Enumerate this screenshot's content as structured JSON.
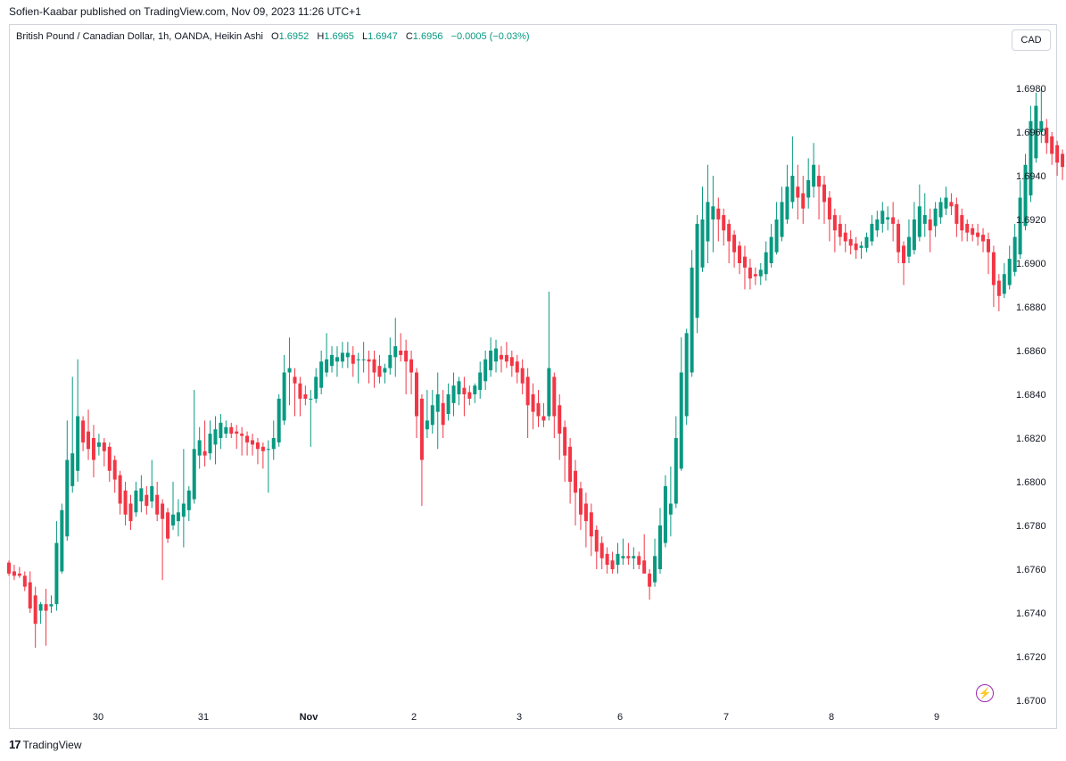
{
  "publish_line": "Sofien-Kaabar published on TradingView.com, Nov 09, 2023 11:26 UTC+1",
  "legend": {
    "symbol": "British Pound / Canadian Dollar, 1h, OANDA, Heikin Ashi",
    "o_label": "O",
    "o_value": "1.6952",
    "h_label": "H",
    "h_value": "1.6965",
    "l_label": "L",
    "l_value": "1.6947",
    "c_label": "C",
    "c_value": "1.6956",
    "change": "−0.0005 (−0.03%)"
  },
  "currency_button": "CAD",
  "logo_mark": "17",
  "logo_text": "TradingView",
  "bolt_icon": "lightning-icon",
  "colors": {
    "up": "#089981",
    "down": "#f23645",
    "axis_text": "#131722",
    "border": "#d1d4dc",
    "accent": "#9c27b0"
  },
  "chart_data": {
    "type": "candlestick",
    "ylim": [
      1.6695,
      1.7005
    ],
    "y_ticks": [
      "1.6700",
      "1.6720",
      "1.6740",
      "1.6760",
      "1.6780",
      "1.6800",
      "1.6820",
      "1.6840",
      "1.6860",
      "1.6880",
      "1.6900",
      "1.6920",
      "1.6940",
      "1.6960",
      "1.6980"
    ],
    "x_ticks": [
      "30",
      "31",
      "Nov",
      "2",
      "3",
      "6",
      "7",
      "8",
      "9"
    ],
    "grid": false,
    "candles": [
      [
        1.6763,
        1.6764,
        1.6757,
        1.6758
      ],
      [
        1.6759,
        1.6762,
        1.6755,
        1.6757
      ],
      [
        1.6758,
        1.6761,
        1.6756,
        1.6757
      ],
      [
        1.6757,
        1.6759,
        1.675,
        1.6752
      ],
      [
        1.6754,
        1.6759,
        1.674,
        1.6742
      ],
      [
        1.6748,
        1.6752,
        1.6724,
        1.6735
      ],
      [
        1.6741,
        1.6745,
        1.6735,
        1.6744
      ],
      [
        1.6744,
        1.6751,
        1.6725,
        1.6741
      ],
      [
        1.6743,
        1.6748,
        1.674,
        1.6744
      ],
      [
        1.6744,
        1.6782,
        1.6741,
        1.6772
      ],
      [
        1.6759,
        1.679,
        1.6758,
        1.6787
      ],
      [
        1.6775,
        1.6828,
        1.6773,
        1.681
      ],
      [
        1.6798,
        1.6848,
        1.6795,
        1.6813
      ],
      [
        1.6805,
        1.6856,
        1.68,
        1.683
      ],
      [
        1.6828,
        1.683,
        1.6814,
        1.6818
      ],
      [
        1.6823,
        1.6833,
        1.681,
        1.6815
      ],
      [
        1.682,
        1.6826,
        1.6802,
        1.681
      ],
      [
        1.6816,
        1.6822,
        1.6812,
        1.6818
      ],
      [
        1.6818,
        1.682,
        1.6807,
        1.6814
      ],
      [
        1.6816,
        1.6818,
        1.68,
        1.6805
      ],
      [
        1.681,
        1.6812,
        1.6795,
        1.6801
      ],
      [
        1.6803,
        1.6805,
        1.6785,
        1.679
      ],
      [
        1.6796,
        1.68,
        1.678,
        1.6785
      ],
      [
        1.679,
        1.6794,
        1.6778,
        1.6782
      ],
      [
        1.6786,
        1.68,
        1.6784,
        1.6796
      ],
      [
        1.6791,
        1.6803,
        1.6786,
        1.6797
      ],
      [
        1.6794,
        1.6798,
        1.6785,
        1.6789
      ],
      [
        1.6791,
        1.681,
        1.6788,
        1.6798
      ],
      [
        1.6794,
        1.68,
        1.6782,
        1.6785
      ],
      [
        1.679,
        1.6792,
        1.6755,
        1.6783
      ],
      [
        1.6786,
        1.6788,
        1.6772,
        1.6774
      ],
      [
        1.678,
        1.68,
        1.6778,
        1.6785
      ],
      [
        1.6782,
        1.6792,
        1.6775,
        1.6786
      ],
      [
        1.6784,
        1.6815,
        1.677,
        1.679
      ],
      [
        1.6787,
        1.6798,
        1.6782,
        1.6796
      ],
      [
        1.6792,
        1.6842,
        1.679,
        1.6815
      ],
      [
        1.6812,
        1.6825,
        1.6806,
        1.6819
      ],
      [
        1.6814,
        1.6828,
        1.6807,
        1.6812
      ],
      [
        1.6813,
        1.6828,
        1.681,
        1.6822
      ],
      [
        1.6817,
        1.683,
        1.6808,
        1.6824
      ],
      [
        1.682,
        1.6831,
        1.6815,
        1.6827
      ],
      [
        1.6822,
        1.6828,
        1.682,
        1.6825
      ],
      [
        1.6825,
        1.6827,
        1.682,
        1.6822
      ],
      [
        1.6823,
        1.6826,
        1.6815,
        1.6822
      ],
      [
        1.6822,
        1.6825,
        1.6812,
        1.6821
      ],
      [
        1.6821,
        1.6823,
        1.6812,
        1.6818
      ],
      [
        1.6819,
        1.6822,
        1.6812,
        1.6817
      ],
      [
        1.6818,
        1.682,
        1.6808,
        1.6815
      ],
      [
        1.6816,
        1.6818,
        1.6806,
        1.6814
      ],
      [
        1.6815,
        1.6819,
        1.6795,
        1.6815
      ],
      [
        1.6815,
        1.6828,
        1.681,
        1.682
      ],
      [
        1.6818,
        1.684,
        1.6816,
        1.6838
      ],
      [
        1.6828,
        1.6858,
        1.6826,
        1.685
      ],
      [
        1.685,
        1.6866,
        1.6835,
        1.6852
      ],
      [
        1.6848,
        1.6852,
        1.683,
        1.6845
      ],
      [
        1.6845,
        1.6848,
        1.683,
        1.6838
      ],
      [
        1.684,
        1.6844,
        1.6835,
        1.6838
      ],
      [
        1.6838,
        1.6842,
        1.6816,
        1.6838
      ],
      [
        1.6838,
        1.6852,
        1.6836,
        1.6848
      ],
      [
        1.6843,
        1.686,
        1.684,
        1.6855
      ],
      [
        1.685,
        1.6868,
        1.6848,
        1.6856
      ],
      [
        1.6853,
        1.6862,
        1.685,
        1.6858
      ],
      [
        1.6855,
        1.6862,
        1.6848,
        1.6857
      ],
      [
        1.6855,
        1.6864,
        1.6852,
        1.6859
      ],
      [
        1.6857,
        1.6864,
        1.6852,
        1.6859
      ],
      [
        1.6858,
        1.6862,
        1.6848,
        1.6854
      ],
      [
        1.6856,
        1.6859,
        1.6845,
        1.6856
      ],
      [
        1.6856,
        1.6864,
        1.685,
        1.6856
      ],
      [
        1.6856,
        1.686,
        1.6845,
        1.6855
      ],
      [
        1.6856,
        1.686,
        1.6843,
        1.685
      ],
      [
        1.6853,
        1.6858,
        1.6845,
        1.6848
      ],
      [
        1.685,
        1.6854,
        1.6845,
        1.6852
      ],
      [
        1.6852,
        1.6866,
        1.6849,
        1.6858
      ],
      [
        1.6857,
        1.6875,
        1.6848,
        1.6862
      ],
      [
        1.686,
        1.6868,
        1.6855,
        1.6858
      ],
      [
        1.686,
        1.6865,
        1.684,
        1.6855
      ],
      [
        1.6856,
        1.686,
        1.684,
        1.685
      ],
      [
        1.685,
        1.6852,
        1.682,
        1.683
      ],
      [
        1.6838,
        1.684,
        1.6789,
        1.681
      ],
      [
        1.6824,
        1.6842,
        1.682,
        1.6828
      ],
      [
        1.6826,
        1.6842,
        1.6822,
        1.6835
      ],
      [
        1.6832,
        1.685,
        1.6815,
        1.684
      ],
      [
        1.6836,
        1.6842,
        1.682,
        1.6826
      ],
      [
        1.6831,
        1.6845,
        1.6828,
        1.684
      ],
      [
        1.6836,
        1.685,
        1.683,
        1.6844
      ],
      [
        1.684,
        1.6848,
        1.6835,
        1.6846
      ],
      [
        1.6843,
        1.6848,
        1.683,
        1.684
      ],
      [
        1.6841,
        1.6844,
        1.6835,
        1.6838
      ],
      [
        1.684,
        1.6845,
        1.6836,
        1.6844
      ],
      [
        1.6842,
        1.6855,
        1.6838,
        1.685
      ],
      [
        1.6846,
        1.686,
        1.6842,
        1.6856
      ],
      [
        1.6851,
        1.6866,
        1.6848,
        1.686
      ],
      [
        1.6855,
        1.6865,
        1.685,
        1.6861
      ],
      [
        1.6858,
        1.6862,
        1.685,
        1.6856
      ],
      [
        1.6858,
        1.6864,
        1.6852,
        1.6855
      ],
      [
        1.6857,
        1.686,
        1.6848,
        1.6853
      ],
      [
        1.6855,
        1.6858,
        1.6845,
        1.685
      ],
      [
        1.6852,
        1.6856,
        1.684,
        1.6845
      ],
      [
        1.6848,
        1.6852,
        1.682,
        1.6835
      ],
      [
        1.684,
        1.6845,
        1.6824,
        1.6832
      ],
      [
        1.6836,
        1.6842,
        1.6825,
        1.683
      ],
      [
        1.683,
        1.6836,
        1.6825,
        1.6828
      ],
      [
        1.683,
        1.6887,
        1.6828,
        1.6852
      ],
      [
        1.6848,
        1.685,
        1.682,
        1.683
      ],
      [
        1.6835,
        1.684,
        1.681,
        1.6822
      ],
      [
        1.6825,
        1.6828,
        1.68,
        1.6812
      ],
      [
        1.6816,
        1.682,
        1.679,
        1.68
      ],
      [
        1.6805,
        1.681,
        1.678,
        1.6795
      ],
      [
        1.6797,
        1.68,
        1.6778,
        1.6785
      ],
      [
        1.679,
        1.6795,
        1.677,
        1.6782
      ],
      [
        1.6786,
        1.679,
        1.6766,
        1.6775
      ],
      [
        1.6778,
        1.678,
        1.676,
        1.6768
      ],
      [
        1.6772,
        1.6775,
        1.676,
        1.6765
      ],
      [
        1.6767,
        1.677,
        1.6758,
        1.6762
      ],
      [
        1.6764,
        1.6768,
        1.6758,
        1.676
      ],
      [
        1.6762,
        1.6772,
        1.6758,
        1.6767
      ],
      [
        1.6765,
        1.6774,
        1.6762,
        1.6766
      ],
      [
        1.6766,
        1.6772,
        1.6762,
        1.6765
      ],
      [
        1.6765,
        1.677,
        1.676,
        1.6766
      ],
      [
        1.6766,
        1.6768,
        1.676,
        1.6762
      ],
      [
        1.6764,
        1.6776,
        1.676,
        1.6758
      ],
      [
        1.6758,
        1.676,
        1.6746,
        1.6752
      ],
      [
        1.6754,
        1.6774,
        1.6752,
        1.6766
      ],
      [
        1.676,
        1.6788,
        1.6758,
        1.678
      ],
      [
        1.6772,
        1.6803,
        1.677,
        1.6798
      ],
      [
        1.6785,
        1.6807,
        1.6775,
        1.679
      ],
      [
        1.679,
        1.683,
        1.6788,
        1.682
      ],
      [
        1.6806,
        1.6866,
        1.6805,
        1.685
      ],
      [
        1.683,
        1.687,
        1.6826,
        1.6868
      ],
      [
        1.685,
        1.6906,
        1.6848,
        1.6898
      ],
      [
        1.6875,
        1.6922,
        1.6868,
        1.6918
      ],
      [
        1.6898,
        1.6935,
        1.6896,
        1.692
      ],
      [
        1.691,
        1.6945,
        1.69,
        1.6928
      ],
      [
        1.692,
        1.694,
        1.6905,
        1.6926
      ],
      [
        1.6925,
        1.693,
        1.691,
        1.692
      ],
      [
        1.6922,
        1.6925,
        1.6908,
        1.6915
      ],
      [
        1.6918,
        1.692,
        1.69,
        1.691
      ],
      [
        1.6913,
        1.6915,
        1.6898,
        1.6905
      ],
      [
        1.6908,
        1.691,
        1.6895,
        1.69
      ],
      [
        1.6903,
        1.6908,
        1.6888,
        1.6898
      ],
      [
        1.6898,
        1.6902,
        1.6888,
        1.6893
      ],
      [
        1.6895,
        1.6898,
        1.689,
        1.6894
      ],
      [
        1.6894,
        1.69,
        1.689,
        1.6897
      ],
      [
        1.6895,
        1.691,
        1.6892,
        1.6905
      ],
      [
        1.69,
        1.6918,
        1.6898,
        1.6912
      ],
      [
        1.6905,
        1.6928,
        1.6904,
        1.692
      ],
      [
        1.6912,
        1.6935,
        1.691,
        1.6928
      ],
      [
        1.692,
        1.6945,
        1.6918,
        1.6935
      ],
      [
        1.6928,
        1.6958,
        1.6925,
        1.694
      ],
      [
        1.6935,
        1.6945,
        1.692,
        1.693
      ],
      [
        1.6932,
        1.694,
        1.6918,
        1.6925
      ],
      [
        1.693,
        1.6948,
        1.6925,
        1.6938
      ],
      [
        1.6935,
        1.6955,
        1.693,
        1.6945
      ],
      [
        1.694,
        1.6945,
        1.692,
        1.6935
      ],
      [
        1.6936,
        1.694,
        1.6918,
        1.6928
      ],
      [
        1.693,
        1.6933,
        1.691,
        1.692
      ],
      [
        1.6922,
        1.6925,
        1.6905,
        1.6915
      ],
      [
        1.6918,
        1.6922,
        1.6908,
        1.6912
      ],
      [
        1.6914,
        1.6918,
        1.6905,
        1.691
      ],
      [
        1.6911,
        1.6915,
        1.6904,
        1.6908
      ],
      [
        1.6909,
        1.6912,
        1.6902,
        1.6906
      ],
      [
        1.6907,
        1.691,
        1.6902,
        1.6908
      ],
      [
        1.6907,
        1.6914,
        1.6905,
        1.6912
      ],
      [
        1.691,
        1.6922,
        1.6908,
        1.6918
      ],
      [
        1.6915,
        1.6924,
        1.6912,
        1.692
      ],
      [
        1.6918,
        1.6928,
        1.6914,
        1.6924
      ],
      [
        1.692,
        1.6926,
        1.6915,
        1.6921
      ],
      [
        1.6921,
        1.6928,
        1.691,
        1.6918
      ],
      [
        1.6918,
        1.692,
        1.69,
        1.6905
      ],
      [
        1.6908,
        1.691,
        1.689,
        1.69
      ],
      [
        1.6903,
        1.692,
        1.69,
        1.6912
      ],
      [
        1.6906,
        1.6928,
        1.6904,
        1.692
      ],
      [
        1.6912,
        1.6936,
        1.691,
        1.6926
      ],
      [
        1.6918,
        1.6932,
        1.6912,
        1.6922
      ],
      [
        1.692,
        1.6925,
        1.6905,
        1.6915
      ],
      [
        1.6917,
        1.6928,
        1.6912,
        1.6925
      ],
      [
        1.6921,
        1.693,
        1.6918,
        1.6928
      ],
      [
        1.6925,
        1.6935,
        1.6922,
        1.693
      ],
      [
        1.6928,
        1.6932,
        1.6922,
        1.6926
      ],
      [
        1.6927,
        1.693,
        1.6912,
        1.6918
      ],
      [
        1.6922,
        1.6925,
        1.691,
        1.6915
      ],
      [
        1.6918,
        1.692,
        1.691,
        1.6914
      ],
      [
        1.6916,
        1.6918,
        1.691,
        1.6913
      ],
      [
        1.6914,
        1.6918,
        1.6908,
        1.6912
      ],
      [
        1.6913,
        1.6916,
        1.6905,
        1.691
      ],
      [
        1.6911,
        1.6914,
        1.6895,
        1.6905
      ],
      [
        1.6905,
        1.6908,
        1.688,
        1.689
      ],
      [
        1.6892,
        1.6895,
        1.6878,
        1.6885
      ],
      [
        1.6886,
        1.69,
        1.6884,
        1.6895
      ],
      [
        1.689,
        1.6908,
        1.6888,
        1.6902
      ],
      [
        1.6896,
        1.6918,
        1.6894,
        1.6912
      ],
      [
        1.6904,
        1.6938,
        1.6902,
        1.693
      ],
      [
        1.6917,
        1.695,
        1.6915,
        1.6945
      ],
      [
        1.6931,
        1.6972,
        1.6928,
        1.6965
      ],
      [
        1.6948,
        1.6978,
        1.6946,
        1.6972
      ],
      [
        1.696,
        1.698,
        1.6955,
        1.6965
      ],
      [
        1.6962,
        1.6966,
        1.695,
        1.6955
      ],
      [
        1.6958,
        1.696,
        1.6945,
        1.695
      ],
      [
        1.6954,
        1.6956,
        1.694,
        1.6946
      ],
      [
        1.695,
        1.6952,
        1.6938,
        1.6944
      ],
      [
        1.6947,
        1.695,
        1.6935,
        1.6941
      ],
      [
        1.6944,
        1.6947,
        1.6936,
        1.694
      ],
      [
        1.6942,
        1.6945,
        1.6936,
        1.6939
      ],
      [
        1.694,
        1.6944,
        1.6936,
        1.6941
      ],
      [
        1.694,
        1.6946,
        1.6935,
        1.6938
      ],
      [
        1.6939,
        1.6942,
        1.6933,
        1.6937
      ],
      [
        1.6938,
        1.694,
        1.6932,
        1.6935
      ],
      [
        1.6936,
        1.6948,
        1.6934,
        1.6946
      ],
      [
        1.6941,
        1.6965,
        1.6938,
        1.696
      ],
      [
        1.695,
        1.6972,
        1.6945,
        1.6962
      ],
      [
        1.6952,
        1.6965,
        1.6947,
        1.6956
      ]
    ]
  }
}
